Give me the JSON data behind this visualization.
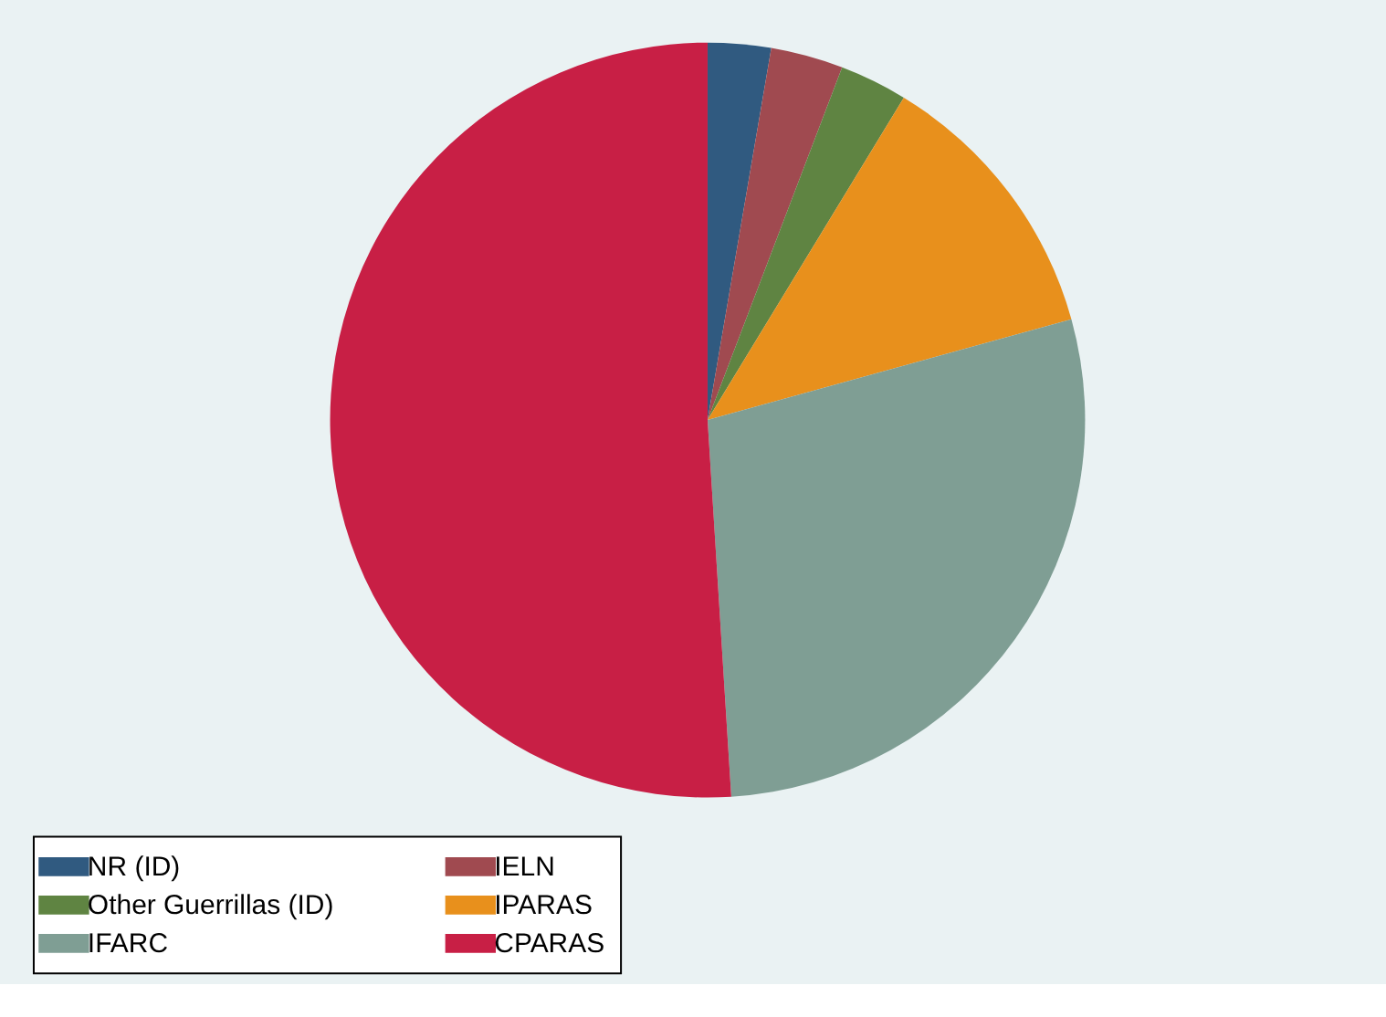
{
  "chart_data": {
    "type": "pie",
    "categories": [
      "NR (ID)",
      "IELN",
      "Other Guerrillas (ID)",
      "IPARAS",
      "IFARC",
      "CPARAS"
    ],
    "values": [
      2.7,
      3.1,
      2.9,
      12.0,
      28.3,
      51.0
    ],
    "colors": [
      "#305a80",
      "#a04a50",
      "#5f8442",
      "#e8901c",
      "#7f9e94",
      "#c81f45"
    ],
    "legend": "bottom"
  }
}
